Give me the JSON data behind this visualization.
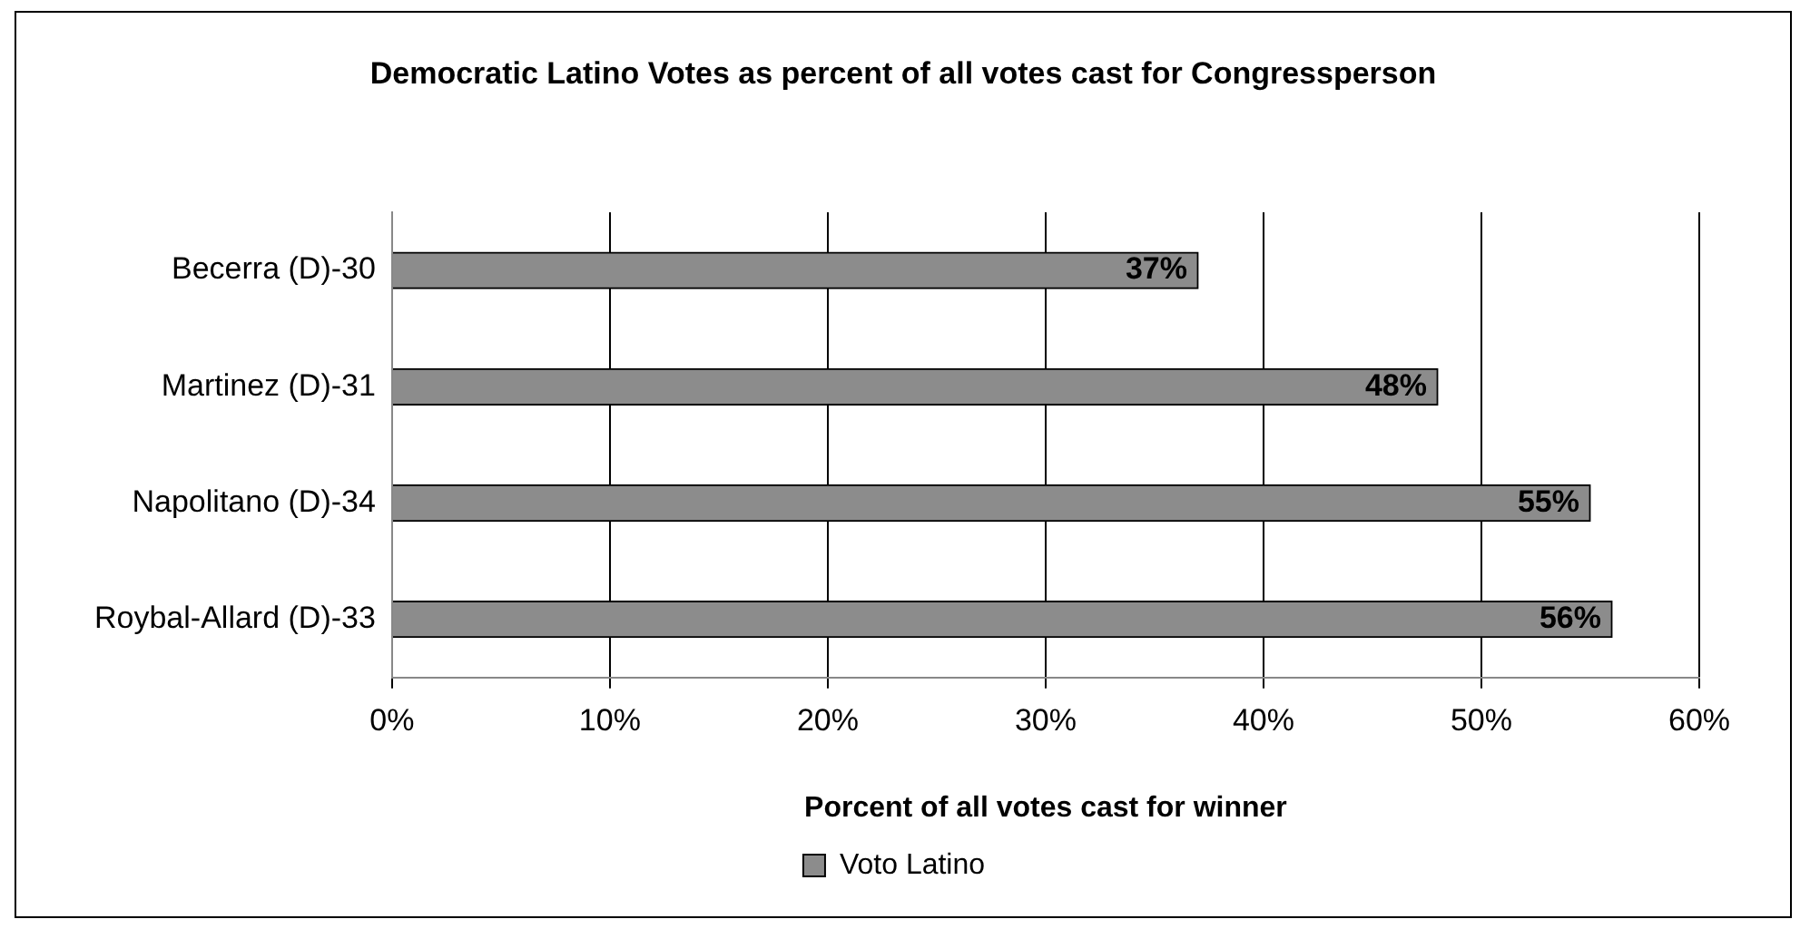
{
  "chart_data": {
    "type": "bar",
    "orientation": "horizontal",
    "title": "Democratic Latino Votes as percent of all votes cast for Congressperson",
    "xlabel": "Porcent of all votes cast for winner",
    "categories": [
      "Becerra (D)-30",
      "Martinez (D)-31",
      "Napolitano (D)-34",
      "Roybal-Allard (D)-33"
    ],
    "series": [
      {
        "name": "Voto Latino",
        "color": "#8c8c8c",
        "values": [
          37,
          48,
          55,
          56
        ],
        "value_labels": [
          "37%",
          "48%",
          "55%",
          "56%"
        ]
      }
    ],
    "xlim": [
      0,
      60
    ],
    "xticks": [
      {
        "value": 0,
        "label": "0%"
      },
      {
        "value": 10,
        "label": "10%"
      },
      {
        "value": 20,
        "label": "20%"
      },
      {
        "value": 30,
        "label": "30%"
      },
      {
        "value": 40,
        "label": "40%"
      },
      {
        "value": 50,
        "label": "50%"
      },
      {
        "value": 60,
        "label": "60%"
      }
    ],
    "grid": "x",
    "legend": "bottom"
  }
}
